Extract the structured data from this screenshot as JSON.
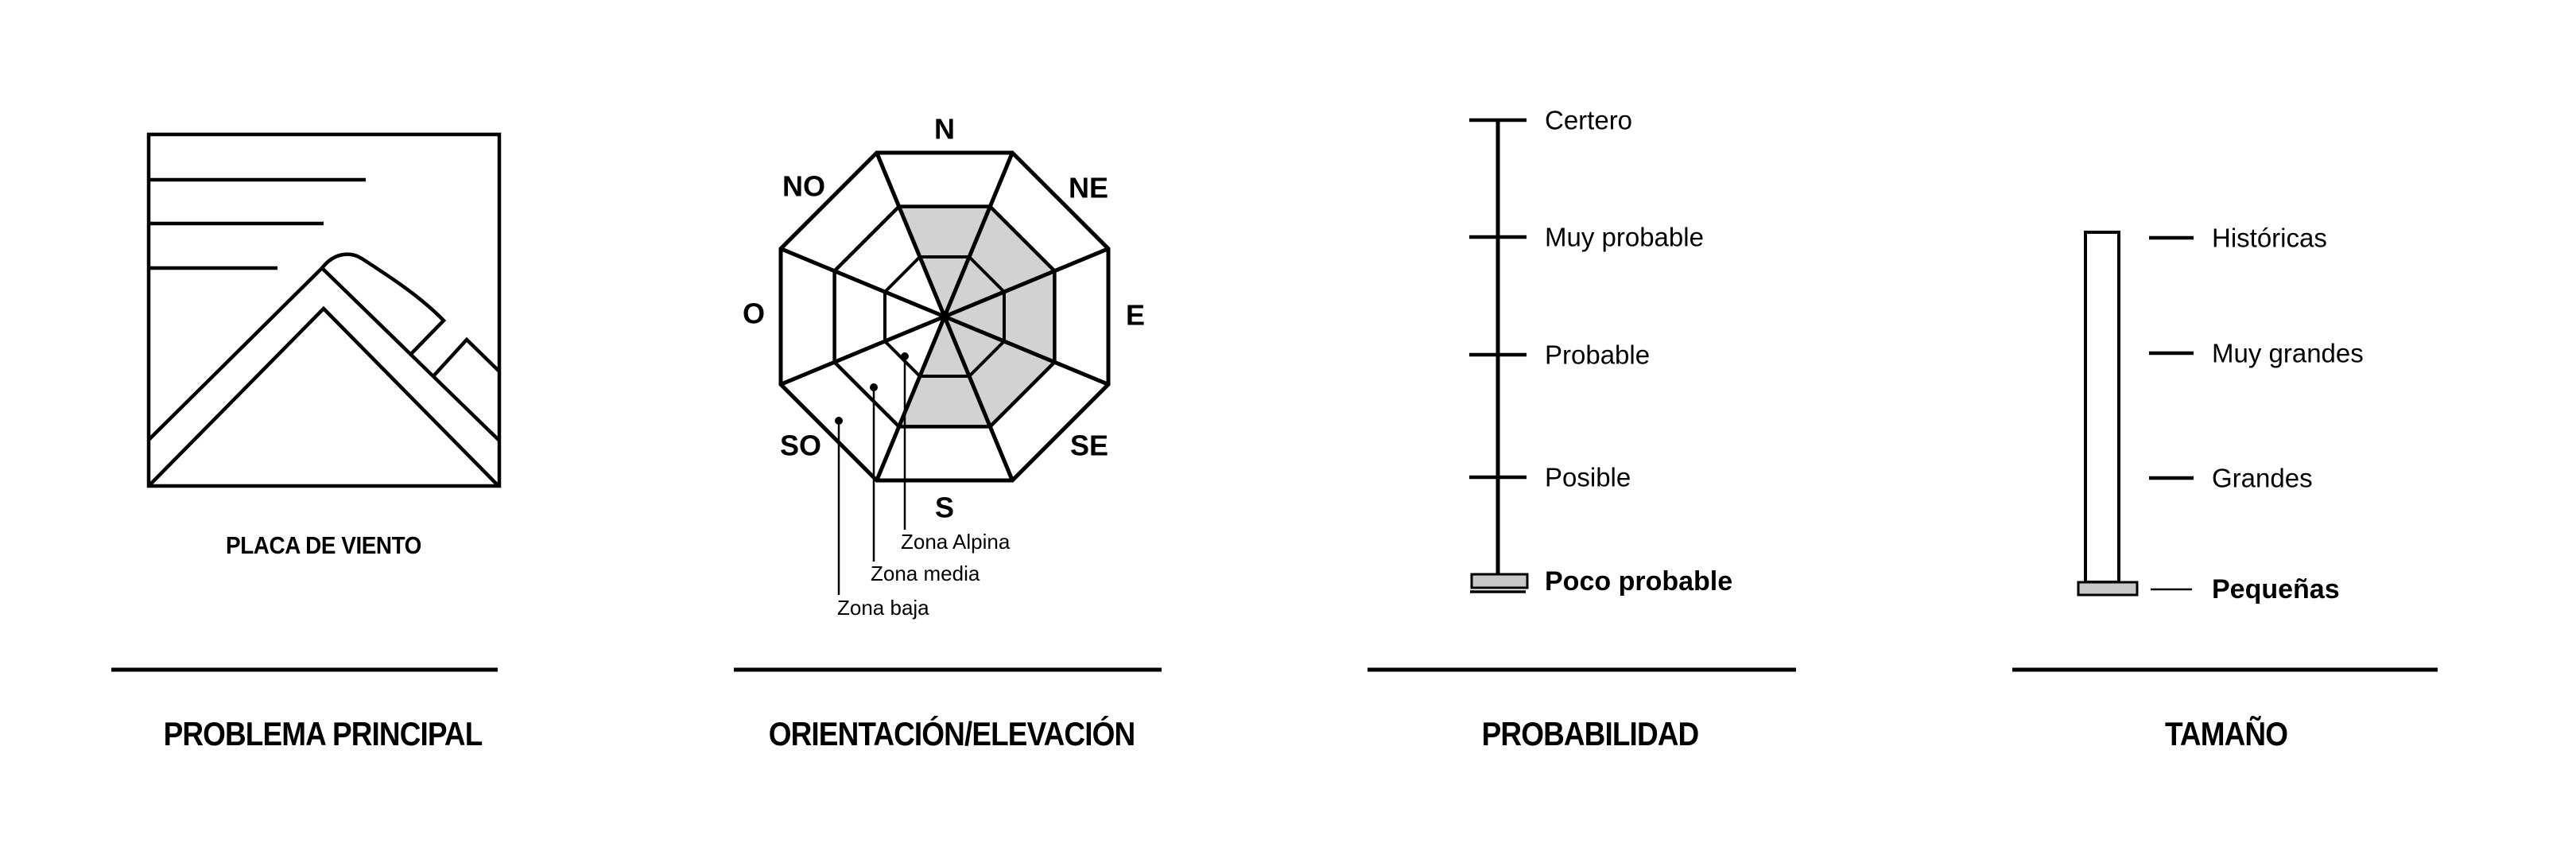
{
  "colors": {
    "ink": "#000000",
    "background": "#ffffff",
    "shade": "#d2d2d2",
    "marker_fill": "#c8c8c8"
  },
  "sections": [
    {
      "header": "PROBLEMA PRINCIPAL",
      "icon": "wind-slab-icon",
      "icon_label": "PLACA DE VIENTO"
    },
    {
      "header": "ORIENTACIÓN/ELEVACIÓN",
      "rose": {
        "directions": [
          "N",
          "NE",
          "E",
          "SE",
          "S",
          "SO",
          "O",
          "NO"
        ],
        "zone_labels": [
          "Zona Alpina",
          "Zona media",
          "Zona baja"
        ],
        "shaded_sectors": [
          "N",
          "NE",
          "E",
          "SE",
          "S"
        ],
        "shaded_zones": [
          "alpina",
          "media"
        ]
      }
    },
    {
      "header": "PROBABILIDAD",
      "levels": [
        "Certero",
        "Muy probable",
        "Probable",
        "Posible",
        "Poco probable"
      ],
      "selected": "Poco probable"
    },
    {
      "header": "TAMAÑO",
      "levels": [
        "Históricas",
        "Muy grandes",
        "Grandes",
        "Pequeñas"
      ],
      "selected": "Pequeñas"
    }
  ]
}
